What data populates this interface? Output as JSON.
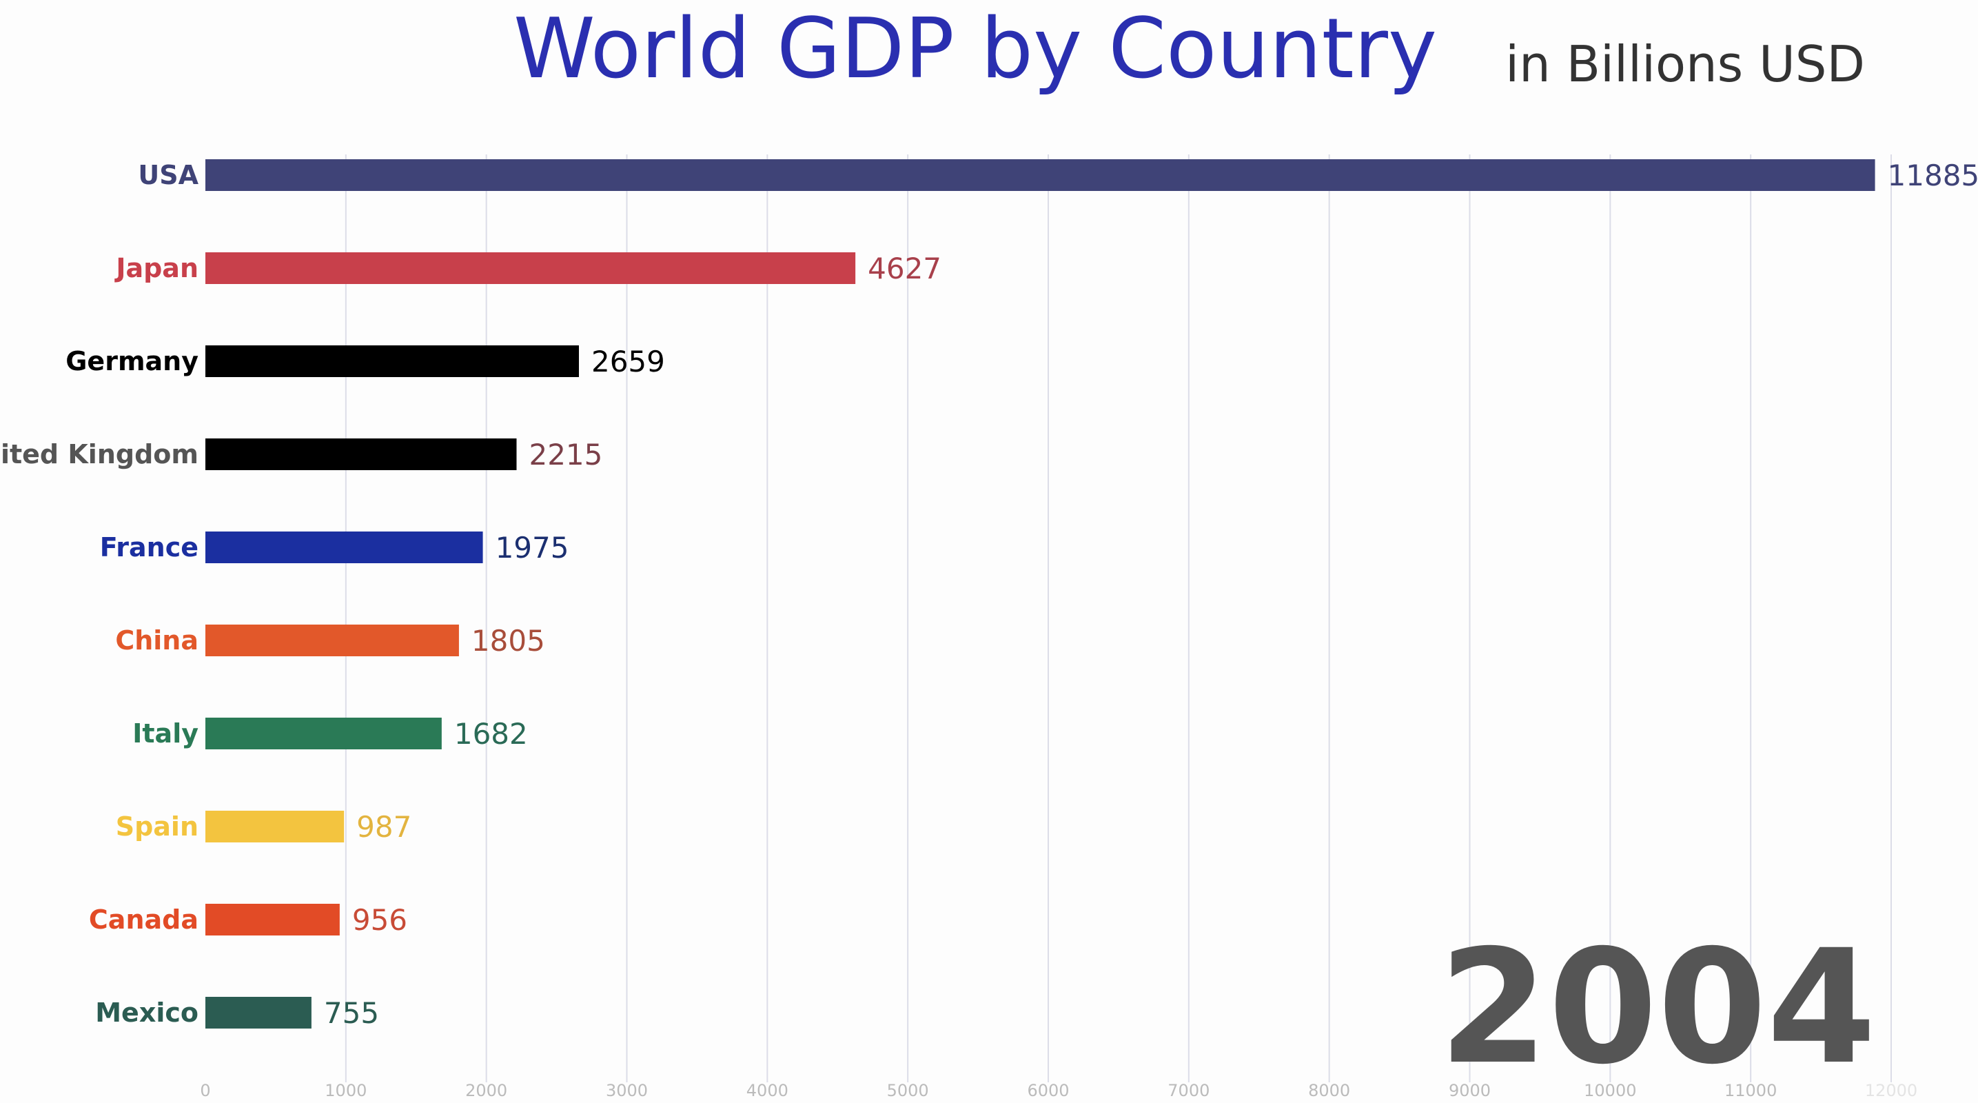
{
  "chart_data": {
    "type": "bar",
    "orientation": "horizontal",
    "title": "World GDP by Country",
    "subtitle": "in Billions USD",
    "year_label": "2004",
    "categories": [
      "USA",
      "Japan",
      "Germany",
      "United Kingdom",
      "France",
      "China",
      "Italy",
      "Spain",
      "Canada",
      "Mexico"
    ],
    "values": [
      11885,
      4627,
      2659,
      2215,
      1975,
      1805,
      1682,
      987,
      956,
      755
    ],
    "value_labels": [
      "11885",
      "4627",
      "2659",
      "2215",
      "1975",
      "1805",
      "1682",
      "987",
      "956",
      "755"
    ],
    "bar_colors": [
      "#3f4377",
      "#c8404b",
      "#000000",
      "#000000",
      "#1b2fa0",
      "#e2582a",
      "#2a7a56",
      "#f3c43f",
      "#e24b26",
      "#2b5c52"
    ],
    "label_colors": [
      "#3f4377",
      "#c8404b",
      "#000000",
      "#555555",
      "#1b2fa0",
      "#e2582a",
      "#2a7a56",
      "#f3c43f",
      "#e24b26",
      "#2b5c52"
    ],
    "value_colors": [
      "#3f4377",
      "#a8404b",
      "#000000",
      "#7a3f48",
      "#1b2f70",
      "#a84d3a",
      "#2a6a56",
      "#e3b43f",
      "#c84b36",
      "#2b5c52"
    ],
    "xlim": [
      0,
      12000
    ],
    "xticks": [
      "0",
      "1000",
      "2000",
      "3000",
      "4000",
      "5000",
      "6000",
      "7000",
      "8000",
      "9000",
      "10000",
      "11000",
      "12000"
    ],
    "grid": true,
    "colors": {
      "title": "#2a2fb0",
      "subtitle": "#333333",
      "year": "#555555",
      "grid": "#dcdde8",
      "tick": "#bbbbbb"
    }
  }
}
